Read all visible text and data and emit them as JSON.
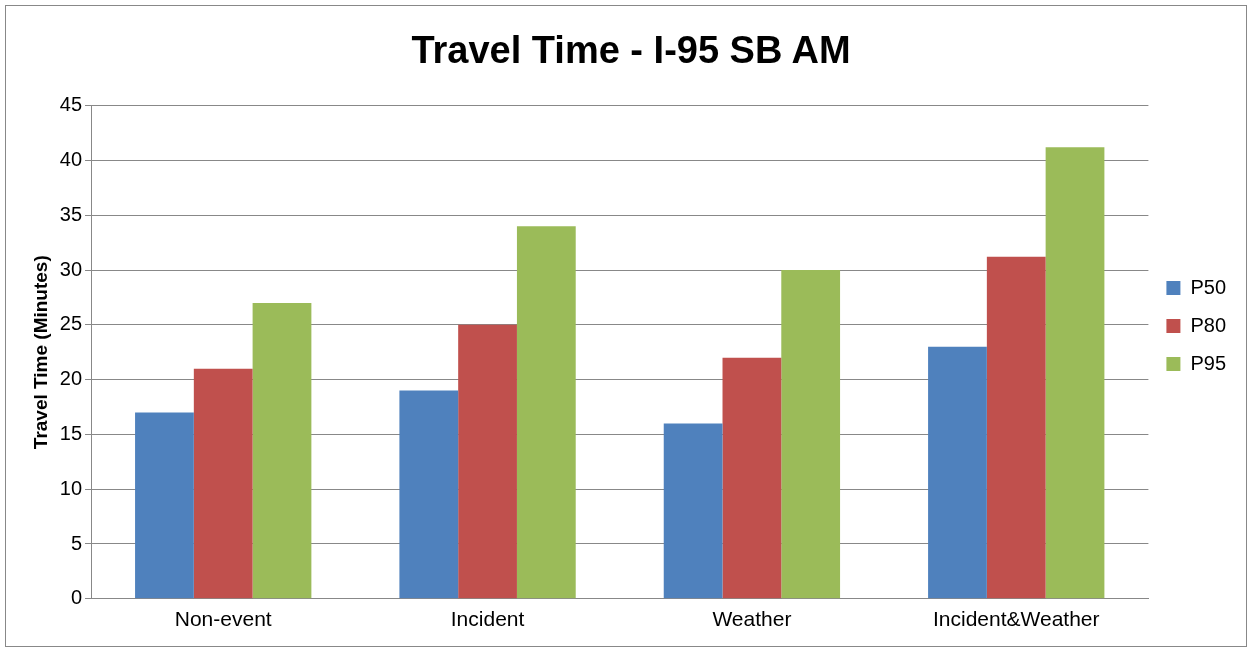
{
  "chart_data": {
    "type": "bar",
    "title": "Travel Time - I-95 SB AM",
    "ylabel": "Travel Time (Minutes)",
    "categories": [
      "Non-event",
      "Incident",
      "Weather",
      "Incident&Weather"
    ],
    "series": [
      {
        "name": "P50",
        "color": "#4f81bd",
        "values": [
          17,
          19,
          16,
          23
        ]
      },
      {
        "name": "P80",
        "color": "#c0504d",
        "values": [
          21,
          25,
          22,
          31.2
        ]
      },
      {
        "name": "P95",
        "color": "#9bbb59",
        "values": [
          27,
          34,
          30,
          41.2
        ]
      }
    ],
    "ylim": [
      0,
      45
    ],
    "yticks": [
      0,
      5,
      10,
      15,
      20,
      25,
      30,
      35,
      40,
      45
    ],
    "grid": "y",
    "legend": "right"
  }
}
